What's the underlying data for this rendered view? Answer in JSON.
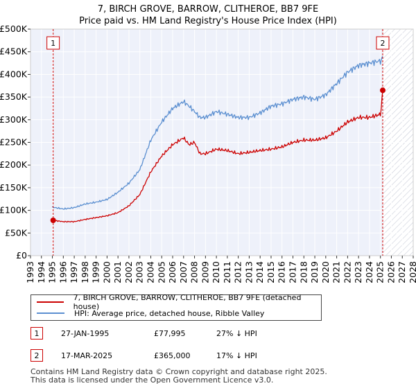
{
  "chart_data": {
    "type": "line",
    "title": "7, BIRCH GROVE, BARROW, CLITHEROE, BB7 9FE",
    "subtitle": "Price paid vs. HM Land Registry's House Price Index (HPI)",
    "xlim": [
      1993,
      2028
    ],
    "ylim": [
      0,
      500000
    ],
    "x_ticks": [
      "1993",
      "1994",
      "1995",
      "1996",
      "1997",
      "1998",
      "1999",
      "2000",
      "2001",
      "2002",
      "2003",
      "2004",
      "2005",
      "2006",
      "2007",
      "2008",
      "2009",
      "2010",
      "2011",
      "2012",
      "2013",
      "2014",
      "2015",
      "2016",
      "2017",
      "2018",
      "2019",
      "2020",
      "2021",
      "2022",
      "2023",
      "2024",
      "2025",
      "2026",
      "2027",
      "2028"
    ],
    "y_ticks": [
      "£0",
      "£50K",
      "£100K",
      "£150K",
      "£200K",
      "£250K",
      "£300K",
      "£350K",
      "£400K",
      "£450K",
      "£500K"
    ],
    "series": [
      {
        "name": "7, BIRCH GROVE, BARROW, CLITHEROE, BB7 9FE (detached house)",
        "color": "#cc0000",
        "x": [
          1995.07,
          1996,
          1997,
          1998,
          1999,
          2000,
          2001,
          2002,
          2003,
          2004,
          2005,
          2006,
          2007,
          2007.5,
          2008,
          2008.5,
          2009,
          2010,
          2011,
          2012,
          2013,
          2014,
          2015,
          2016,
          2017,
          2018,
          2019,
          2020,
          2021,
          2022,
          2023,
          2024,
          2025.0,
          2025.21
        ],
        "values": [
          78000,
          75000,
          75000,
          80000,
          84000,
          88000,
          95000,
          110000,
          135000,
          185000,
          220000,
          245000,
          260000,
          245000,
          250000,
          225000,
          225000,
          235000,
          232000,
          225000,
          228000,
          232000,
          235000,
          240000,
          250000,
          255000,
          255000,
          260000,
          275000,
          295000,
          305000,
          305000,
          312000,
          365000
        ]
      },
      {
        "name": "HPI: Average price, detached house, Ribble Valley",
        "color": "#5b8fd0",
        "x": [
          1995.0,
          1996,
          1997,
          1998,
          1999,
          2000,
          2001,
          2002,
          2003,
          2004,
          2005,
          2006,
          2007,
          2007.5,
          2008,
          2008.5,
          2009,
          2010,
          2011,
          2012,
          2013,
          2014,
          2015,
          2016,
          2017,
          2018,
          2019,
          2020,
          2021,
          2022,
          2023,
          2024,
          2025.0,
          2025.21
        ],
        "values": [
          107000,
          103000,
          106000,
          114000,
          118000,
          124000,
          140000,
          160000,
          190000,
          255000,
          295000,
          325000,
          340000,
          330000,
          318000,
          305000,
          305000,
          318000,
          312000,
          305000,
          305000,
          315000,
          330000,
          335000,
          345000,
          350000,
          345000,
          355000,
          380000,
          405000,
          420000,
          425000,
          430000,
          440000
        ]
      }
    ],
    "markers": [
      {
        "label": "1",
        "x": 1995.07,
        "y": 77995
      },
      {
        "label": "2",
        "x": 2025.21,
        "y": 365000
      }
    ]
  },
  "legend": {
    "property_label": "7, BIRCH GROVE, BARROW, CLITHEROE, BB7 9FE (detached house)",
    "hpi_label": "HPI: Average price, detached house, Ribble Valley"
  },
  "transactions": [
    {
      "num": "1",
      "date": "27-JAN-1995",
      "price": "£77,995",
      "hpi": "27% ↓ HPI"
    },
    {
      "num": "2",
      "date": "17-MAR-2025",
      "price": "£365,000",
      "hpi": "17% ↓ HPI"
    }
  ],
  "footer": {
    "line1": "Contains HM Land Registry data © Crown copyright and database right 2025.",
    "line2": "This data is licensed under the Open Government Licence v3.0."
  }
}
